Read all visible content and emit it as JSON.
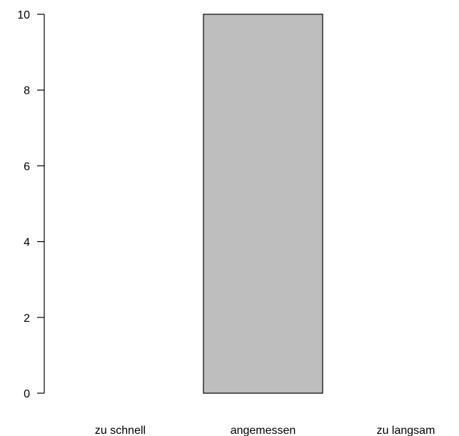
{
  "chart_data": {
    "type": "bar",
    "categories": [
      "zu schnell",
      "angemessen",
      "zu langsam"
    ],
    "values": [
      0,
      10,
      0
    ],
    "title": "",
    "xlabel": "",
    "ylabel": "",
    "ylim": [
      0,
      10
    ],
    "yticks": [
      0,
      2,
      4,
      6,
      8,
      10
    ],
    "grid": false,
    "bar_fill": "#bebebe",
    "bar_stroke": "#000000"
  }
}
